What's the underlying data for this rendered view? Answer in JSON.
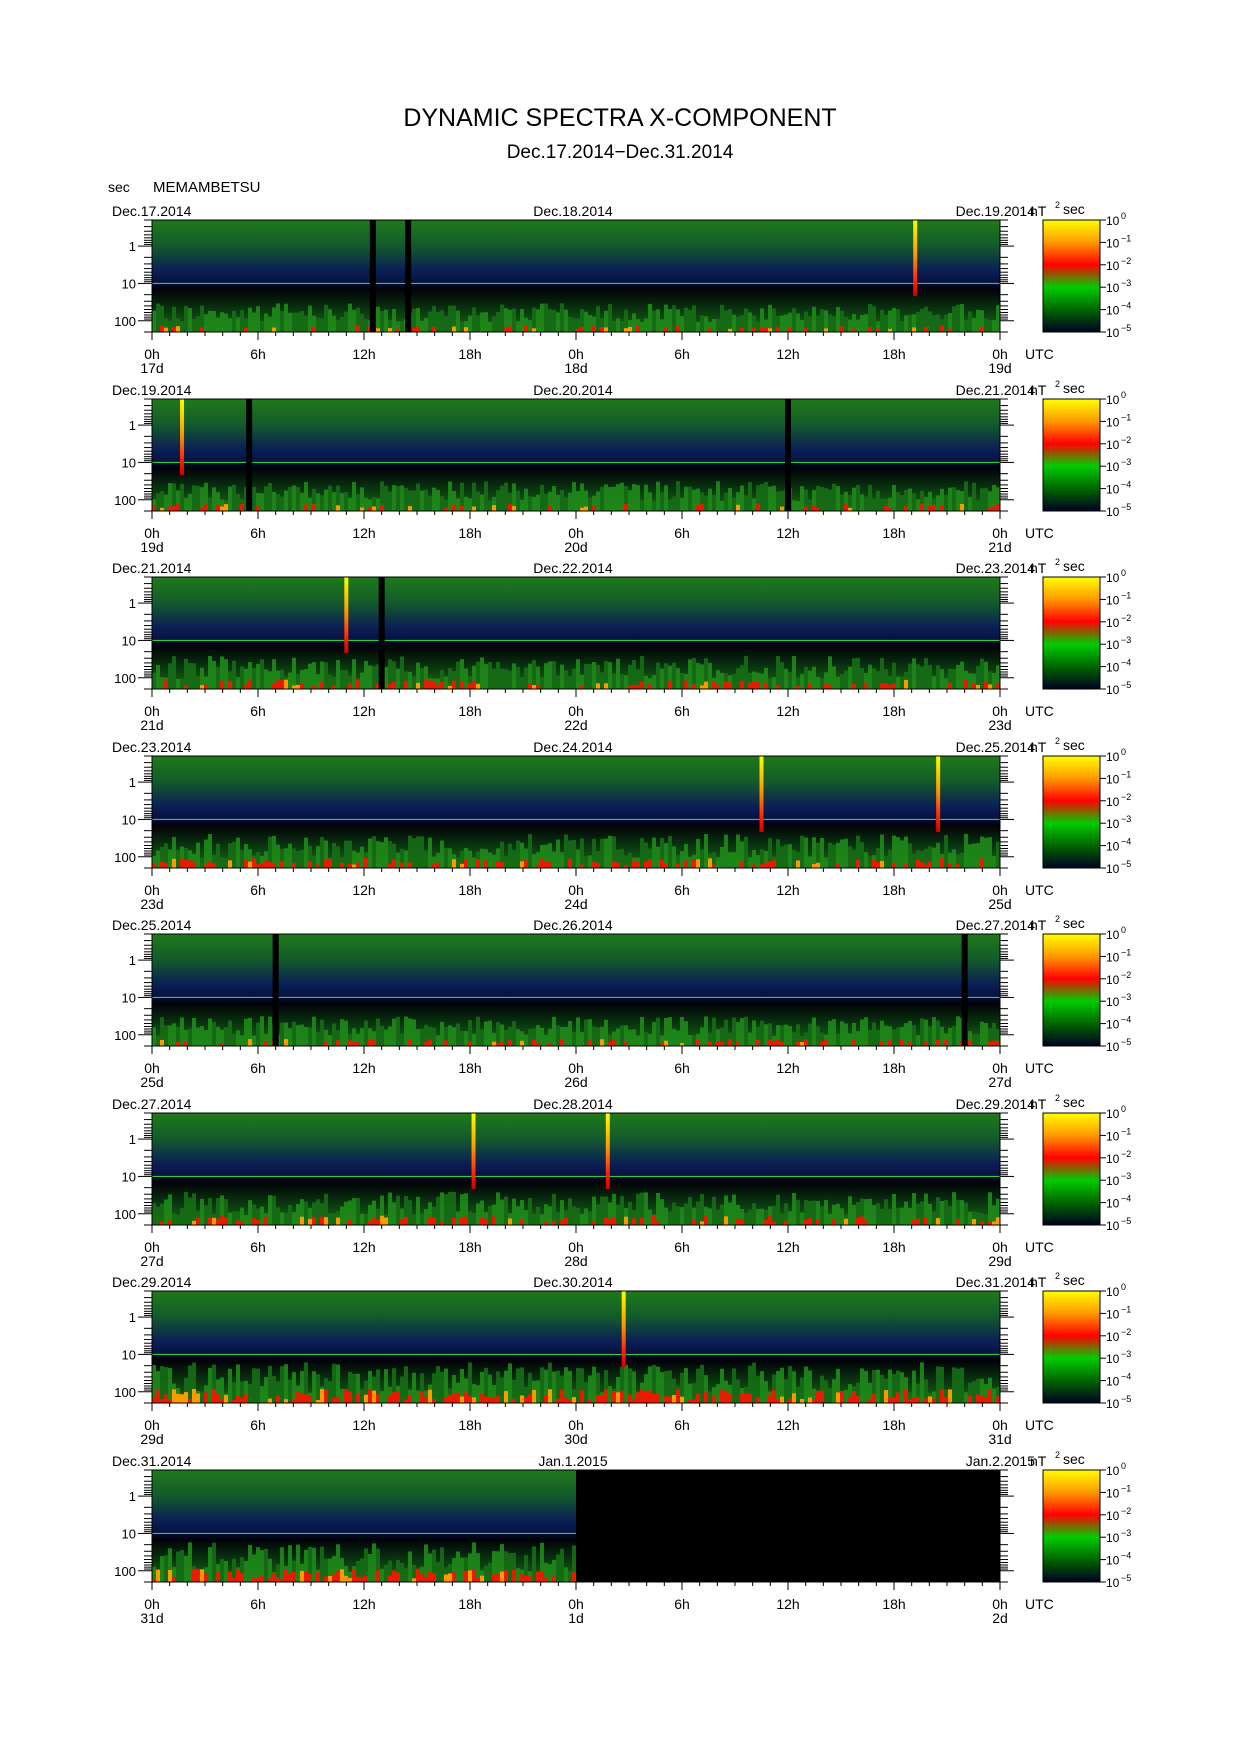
{
  "chart_data": {
    "type": "heatmap",
    "title": "DYNAMIC SPECTRA X-COMPONENT",
    "subtitle": "Dec.17.2014−Dec.31.2014",
    "station": "MEMAMBETSU",
    "y_unit": "sec",
    "y_scale": "log",
    "y_range": [
      200,
      0.2
    ],
    "y_ticks": [
      "1",
      "10",
      "100"
    ],
    "x_unit": "UTC",
    "x_range_hours": [
      0,
      48
    ],
    "hour_ticks": [
      "0h",
      "6h",
      "12h",
      "18h",
      "0h",
      "6h",
      "12h",
      "18h",
      "0h"
    ],
    "colorbar": {
      "unit_prefix": "nT",
      "unit_power": "2",
      "unit_suffix": "sec",
      "scale": "log",
      "range": [
        1e-05,
        1
      ],
      "base": "10",
      "exponents": [
        "0",
        "−1",
        "−2",
        "−3",
        "−4",
        "−5"
      ],
      "colors": [
        "#ffff00",
        "#ff9900",
        "#ff0000",
        "#00cc00",
        "#006600",
        "#000022"
      ]
    },
    "panels": [
      {
        "start": "Dec.17.2014",
        "mid": "Dec.18.2014",
        "end": "Dec.19.2014",
        "day_labels": [
          "17d",
          "18d",
          "19d"
        ],
        "activity": 0.25,
        "spikes_h": [
          43.2
        ],
        "gaps_h": [
          12.5,
          14.5
        ],
        "data_end_h": 48
      },
      {
        "start": "Dec.19.2014",
        "mid": "Dec.20.2014",
        "end": "Dec.21.2014",
        "day_labels": [
          "19d",
          "20d",
          "21d"
        ],
        "activity": 0.3,
        "spikes_h": [
          1.7
        ],
        "gaps_h": [
          5.5,
          36.0
        ],
        "data_end_h": 48
      },
      {
        "start": "Dec.21.2014",
        "mid": "Dec.22.2014",
        "end": "Dec.23.2014",
        "day_labels": [
          "21d",
          "22d",
          "23d"
        ],
        "activity": 0.45,
        "spikes_h": [
          11.0
        ],
        "gaps_h": [
          13.0
        ],
        "data_end_h": 48
      },
      {
        "start": "Dec.23.2014",
        "mid": "Dec.24.2014",
        "end": "Dec.25.2014",
        "day_labels": [
          "23d",
          "24d",
          "25d"
        ],
        "activity": 0.5,
        "spikes_h": [
          34.5,
          44.5
        ],
        "gaps_h": [],
        "data_end_h": 48
      },
      {
        "start": "Dec.25.2014",
        "mid": "Dec.26.2014",
        "end": "Dec.27.2014",
        "day_labels": [
          "25d",
          "26d",
          "27d"
        ],
        "activity": 0.3,
        "spikes_h": [],
        "gaps_h": [
          7.0,
          46.0
        ],
        "data_end_h": 48
      },
      {
        "start": "Dec.27.2014",
        "mid": "Dec.28.2014",
        "end": "Dec.29.2014",
        "day_labels": [
          "27d",
          "28d",
          "29d"
        ],
        "activity": 0.45,
        "spikes_h": [
          18.2,
          25.8
        ],
        "gaps_h": [],
        "data_end_h": 48
      },
      {
        "start": "Dec.29.2014",
        "mid": "Dec.30.2014",
        "end": "Dec.31.2014",
        "day_labels": [
          "29d",
          "30d",
          "31d"
        ],
        "activity": 0.8,
        "spikes_h": [
          26.7
        ],
        "gaps_h": [],
        "data_end_h": 48
      },
      {
        "start": "Dec.31.2014",
        "mid": "Jan.1.2015",
        "end": "Jan.2.2015",
        "day_labels": [
          "31d",
          "1d",
          "2d"
        ],
        "activity": 0.75,
        "spikes_h": [],
        "gaps_h": [],
        "data_end_h": 24
      }
    ]
  }
}
